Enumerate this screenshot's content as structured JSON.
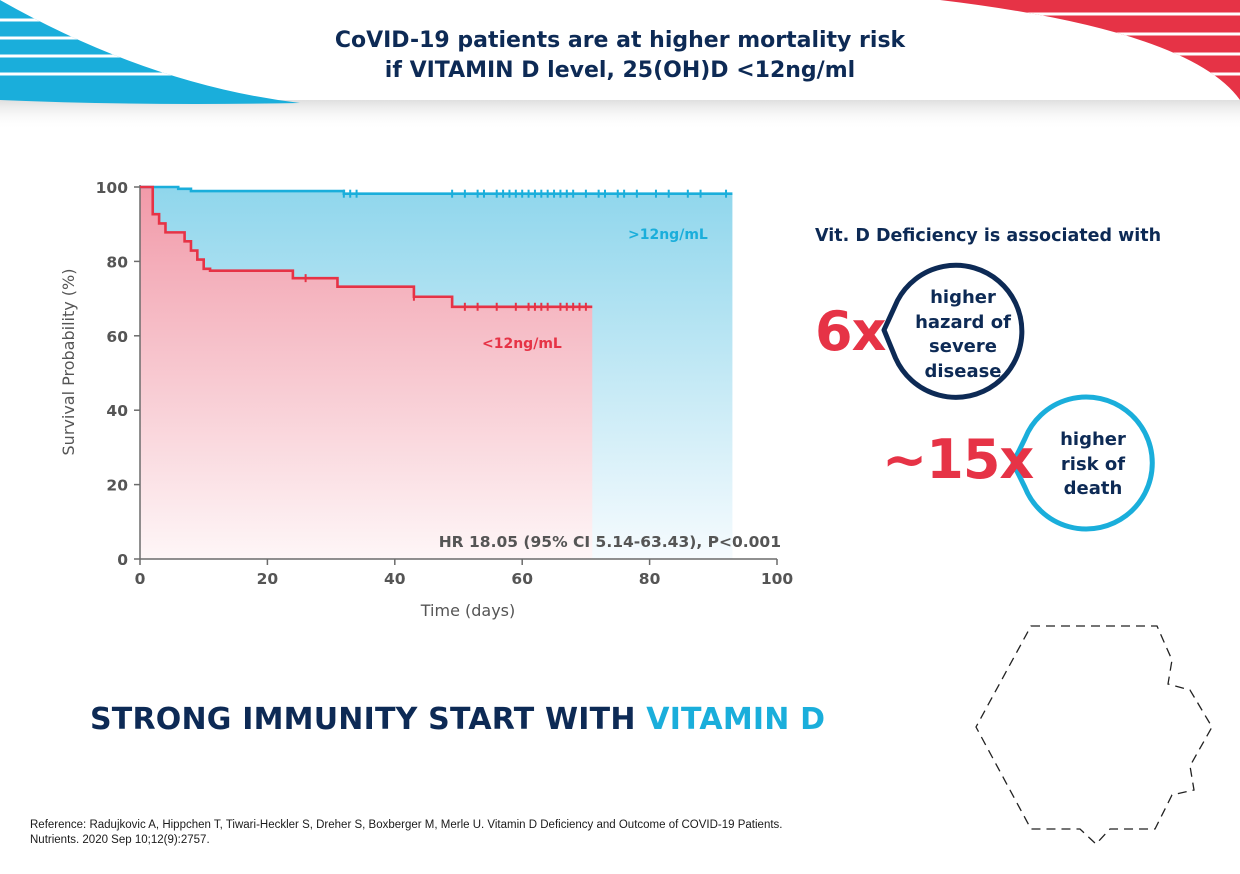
{
  "title": {
    "line1": "CoVID-19 patients are at higher mortality risk",
    "line2": "if VITAMIN D level, 25(OH)D <12ng/ml"
  },
  "colors": {
    "navy": "#0d2a55",
    "red": "#e63346",
    "blue": "#1aaedb",
    "axis_text": "#555555"
  },
  "chart_data": {
    "type": "line",
    "subtype": "kaplan-meier-step",
    "xlabel": "Time (days)",
    "ylabel": "Survival Probability (%)",
    "xlim": [
      0,
      100
    ],
    "ylim": [
      0,
      100
    ],
    "xticks": [
      0,
      20,
      40,
      60,
      80,
      100
    ],
    "yticks": [
      0,
      20,
      40,
      60,
      80,
      100
    ],
    "grid": false,
    "annotation": "HR 18.05 (95% CI 5.14-63.43), P<0.001",
    "series": [
      {
        "name": ">12ng/mL",
        "color": "#1aaedb",
        "steps": [
          [
            0,
            100
          ],
          [
            6,
            99.5
          ],
          [
            8,
            98.9
          ],
          [
            24,
            98.9
          ],
          [
            32,
            98.2
          ],
          [
            93,
            98.2
          ]
        ],
        "censor_x": [
          32,
          33,
          34,
          49,
          51,
          53,
          54,
          56,
          57,
          58,
          59,
          60,
          61,
          62,
          63,
          64,
          65,
          66,
          67,
          68,
          70,
          72,
          73,
          75,
          76,
          78,
          81,
          83,
          86,
          88,
          92
        ]
      },
      {
        "name": "<12ng/mL",
        "color": "#e63346",
        "steps": [
          [
            0,
            100
          ],
          [
            2,
            92.7
          ],
          [
            3,
            90.2
          ],
          [
            4,
            87.8
          ],
          [
            7,
            85.4
          ],
          [
            8,
            82.9
          ],
          [
            9,
            80.5
          ],
          [
            10,
            78.0
          ],
          [
            11,
            77.5
          ],
          [
            24,
            75.5
          ],
          [
            31,
            73.2
          ],
          [
            43,
            70.5
          ],
          [
            49,
            67.8
          ],
          [
            71,
            67.8
          ]
        ],
        "censor_x": [
          26,
          43,
          51,
          53,
          56,
          59,
          61,
          62,
          63,
          64,
          66,
          67,
          68,
          69,
          70
        ]
      }
    ]
  },
  "side": {
    "heading": "Vit. D Deficiency is associated with",
    "stat1": {
      "value": "6x",
      "line1": "higher",
      "line2": "hazard of",
      "line3": "severe",
      "line4": "disease"
    },
    "stat2": {
      "value": "~15x",
      "line1": "higher",
      "line2": "risk of",
      "line3": "death"
    }
  },
  "tagline": {
    "part1": "STRONG IMMUNITY START WITH ",
    "part2": "VITAMIN D"
  },
  "reference": {
    "line1": "Reference: Radujkovic A, Hippchen T, Tiwari-Heckler S, Dreher S, Boxberger M, Merle U. Vitamin D Deficiency and Outcome of COVID-19 Patients.",
    "line2": "Nutrients. 2020 Sep 10;12(9):2757."
  }
}
